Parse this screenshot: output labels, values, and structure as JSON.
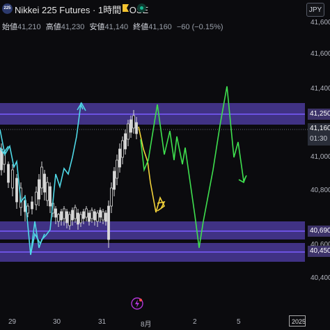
{
  "header": {
    "symbol_badge": "225",
    "title": "Nikkei 225 Futures · 1時間 · OSE",
    "ohlc": {
      "open_label": "始値",
      "open": "41,210",
      "high_label": "高値",
      "high": "41,230",
      "low_label": "安値",
      "low": "41,140",
      "close_label": "終値",
      "close": "41,160",
      "change": "−60 (−0.15%)"
    },
    "currency": "JPY"
  },
  "price_axis": {
    "labels": [
      "41,600",
      "41,400",
      "41,000",
      "40,800",
      "40,600",
      "40,400"
    ]
  },
  "price_tags": {
    "upper_level": "41,250",
    "middle_level": "40,690",
    "lower_level": "40,450",
    "last_price": "41,160",
    "countdown": "01:30"
  },
  "time_axis": {
    "labels": [
      "29",
      "30",
      "31",
      "8月",
      "2",
      "5"
    ],
    "date_box": "2025-"
  },
  "colors": {
    "zone": "#4a3a99",
    "zone_line": "#7a5cff",
    "projection_cyan": "#4fd8e6",
    "projection_yellow": "#f2d23a",
    "projection_green": "#3fe04f",
    "candle": "#d9d9d9",
    "badge": "#2c3a6e",
    "accent_flag": "#f4c430"
  },
  "icons": {
    "flag": "flag-icon",
    "status": "market-status-icon",
    "bolt": "lightning-icon"
  }
}
